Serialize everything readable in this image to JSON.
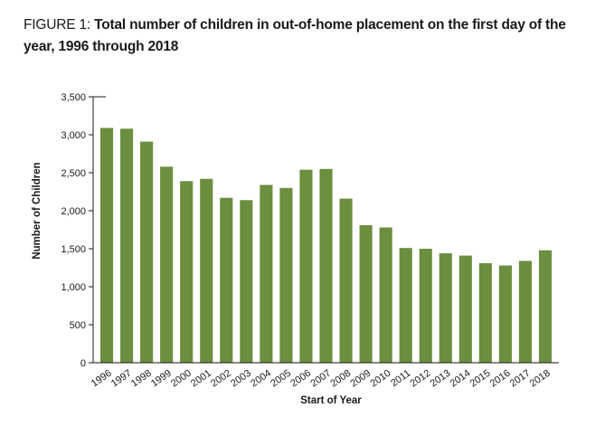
{
  "figure": {
    "label": "FIGURE 1:",
    "title": "Total number of children in out-of-home placement on the first day of the year, 1996 through 2018"
  },
  "chart_data": {
    "type": "bar",
    "title": "Total number of children in out-of-home placement on the first day of the year, 1996 through 2018",
    "xlabel": "Start of Year",
    "ylabel": "Number of Children",
    "ylim": [
      0,
      3500
    ],
    "yticks": [
      0,
      500,
      1000,
      1500,
      2000,
      2500,
      3000,
      3500
    ],
    "ytick_labels": [
      "0",
      "500",
      "1,000",
      "1,500",
      "2,000",
      "2,500",
      "3,000",
      "3,500"
    ],
    "grid": false,
    "bar_color": "#6b8e3f",
    "categories": [
      "1996",
      "1997",
      "1998",
      "1999",
      "2000",
      "2001",
      "2002",
      "2003",
      "2004",
      "2005",
      "2006",
      "2007",
      "2008",
      "2009",
      "2010",
      "2011",
      "2012",
      "2013",
      "2014",
      "2015",
      "2016",
      "2017",
      "2018"
    ],
    "values": [
      3090,
      3080,
      2910,
      2580,
      2390,
      2420,
      2170,
      2140,
      2340,
      2300,
      2540,
      2550,
      2160,
      1810,
      1780,
      1510,
      1500,
      1440,
      1410,
      1310,
      1280,
      1340,
      1480
    ]
  }
}
